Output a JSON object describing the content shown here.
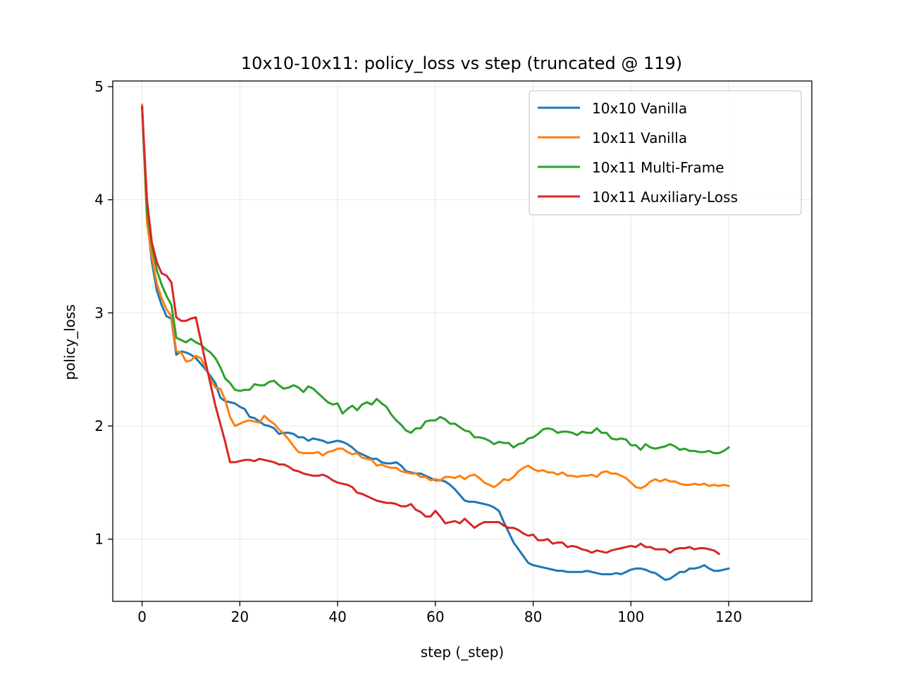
{
  "chart_data": {
    "type": "line",
    "title": "10x10-10x11: policy_loss vs step (truncated @ 119)",
    "xlabel": "step (_step)",
    "ylabel": "policy_loss",
    "xlim": [
      -6,
      137
    ],
    "ylim": [
      0.45,
      5.05
    ],
    "xticks": [
      0,
      20,
      40,
      60,
      80,
      100,
      120
    ],
    "yticks": [
      1,
      2,
      3,
      4,
      5
    ],
    "grid": true,
    "legend_position": "top-right",
    "series": [
      {
        "name": "10x10 Vanilla",
        "color": "#1f77b4",
        "values": [
          4.83,
          3.85,
          3.45,
          3.2,
          3.07,
          2.97,
          2.95,
          2.63,
          2.66,
          2.65,
          2.63,
          2.6,
          2.55,
          2.5,
          2.44,
          2.38,
          2.25,
          2.22,
          2.21,
          2.2,
          2.17,
          2.15,
          2.08,
          2.07,
          2.04,
          2.01,
          2.0,
          1.98,
          1.93,
          1.94,
          1.94,
          1.93,
          1.9,
          1.9,
          1.87,
          1.89,
          1.88,
          1.87,
          1.85,
          1.86,
          1.87,
          1.86,
          1.84,
          1.81,
          1.77,
          1.75,
          1.73,
          1.71,
          1.71,
          1.68,
          1.67,
          1.67,
          1.68,
          1.65,
          1.6,
          1.59,
          1.58,
          1.58,
          1.56,
          1.54,
          1.52,
          1.52,
          1.51,
          1.48,
          1.44,
          1.39,
          1.34,
          1.33,
          1.33,
          1.32,
          1.31,
          1.3,
          1.28,
          1.25,
          1.15,
          1.06,
          0.97,
          0.91,
          0.85,
          0.79,
          0.77,
          0.76,
          0.75,
          0.74,
          0.73,
          0.72,
          0.72,
          0.71,
          0.71,
          0.71,
          0.71,
          0.72,
          0.71,
          0.7,
          0.69,
          0.69,
          0.69,
          0.7,
          0.69,
          0.71,
          0.73,
          0.74,
          0.74,
          0.73,
          0.71,
          0.7,
          0.67,
          0.64,
          0.65,
          0.68,
          0.71,
          0.71,
          0.74,
          0.74,
          0.75,
          0.77,
          0.74,
          0.72,
          0.72,
          0.73,
          0.74
        ]
      },
      {
        "name": "10x11 Vanilla",
        "color": "#ff7f0e",
        "values": [
          4.84,
          3.8,
          3.5,
          3.26,
          3.13,
          3.03,
          2.97,
          2.66,
          2.65,
          2.57,
          2.58,
          2.62,
          2.6,
          2.52,
          2.41,
          2.34,
          2.33,
          2.23,
          2.08,
          2.0,
          2.02,
          2.04,
          2.05,
          2.04,
          2.03,
          2.09,
          2.05,
          2.02,
          1.97,
          1.93,
          1.88,
          1.82,
          1.77,
          1.76,
          1.76,
          1.76,
          1.77,
          1.74,
          1.77,
          1.78,
          1.8,
          1.8,
          1.77,
          1.75,
          1.76,
          1.72,
          1.71,
          1.7,
          1.65,
          1.66,
          1.64,
          1.63,
          1.63,
          1.6,
          1.59,
          1.58,
          1.58,
          1.55,
          1.55,
          1.52,
          1.53,
          1.52,
          1.55,
          1.55,
          1.54,
          1.56,
          1.53,
          1.56,
          1.57,
          1.54,
          1.5,
          1.48,
          1.46,
          1.49,
          1.53,
          1.52,
          1.55,
          1.6,
          1.63,
          1.65,
          1.62,
          1.6,
          1.61,
          1.59,
          1.59,
          1.57,
          1.59,
          1.56,
          1.56,
          1.55,
          1.56,
          1.56,
          1.57,
          1.55,
          1.59,
          1.6,
          1.58,
          1.58,
          1.56,
          1.54,
          1.5,
          1.46,
          1.45,
          1.47,
          1.51,
          1.53,
          1.51,
          1.53,
          1.51,
          1.51,
          1.49,
          1.48,
          1.48,
          1.49,
          1.48,
          1.49,
          1.47,
          1.48,
          1.47,
          1.48,
          1.47
        ]
      },
      {
        "name": "10x11 Multi-Frame",
        "color": "#2ca02c",
        "values": [
          4.82,
          3.9,
          3.6,
          3.38,
          3.25,
          3.15,
          3.07,
          2.78,
          2.76,
          2.74,
          2.77,
          2.74,
          2.72,
          2.68,
          2.65,
          2.6,
          2.52,
          2.42,
          2.38,
          2.32,
          2.31,
          2.32,
          2.32,
          2.37,
          2.36,
          2.36,
          2.39,
          2.4,
          2.36,
          2.33,
          2.34,
          2.36,
          2.34,
          2.3,
          2.35,
          2.33,
          2.29,
          2.25,
          2.21,
          2.19,
          2.2,
          2.11,
          2.15,
          2.18,
          2.14,
          2.19,
          2.21,
          2.19,
          2.24,
          2.2,
          2.17,
          2.1,
          2.05,
          2.01,
          1.96,
          1.94,
          1.98,
          1.98,
          2.04,
          2.05,
          2.05,
          2.08,
          2.06,
          2.02,
          2.02,
          1.99,
          1.96,
          1.95,
          1.9,
          1.9,
          1.89,
          1.87,
          1.84,
          1.86,
          1.85,
          1.85,
          1.81,
          1.84,
          1.85,
          1.89,
          1.9,
          1.93,
          1.97,
          1.98,
          1.97,
          1.94,
          1.95,
          1.95,
          1.94,
          1.92,
          1.95,
          1.94,
          1.94,
          1.98,
          1.94,
          1.94,
          1.89,
          1.88,
          1.89,
          1.88,
          1.83,
          1.83,
          1.79,
          1.84,
          1.81,
          1.8,
          1.81,
          1.82,
          1.84,
          1.82,
          1.79,
          1.8,
          1.78,
          1.78,
          1.77,
          1.77,
          1.78,
          1.76,
          1.76,
          1.78,
          1.81
        ]
      },
      {
        "name": "10x11 Auxiliary-Loss",
        "color": "#d62728",
        "values": [
          4.82,
          4.0,
          3.62,
          3.45,
          3.35,
          3.33,
          3.27,
          2.96,
          2.93,
          2.93,
          2.95,
          2.96,
          2.76,
          2.56,
          2.37,
          2.18,
          2.02,
          1.86,
          1.68,
          1.68,
          1.69,
          1.7,
          1.7,
          1.69,
          1.71,
          1.7,
          1.69,
          1.68,
          1.66,
          1.66,
          1.64,
          1.61,
          1.6,
          1.58,
          1.57,
          1.56,
          1.56,
          1.57,
          1.55,
          1.52,
          1.5,
          1.49,
          1.48,
          1.46,
          1.41,
          1.4,
          1.38,
          1.36,
          1.34,
          1.33,
          1.32,
          1.32,
          1.31,
          1.29,
          1.29,
          1.31,
          1.26,
          1.24,
          1.2,
          1.2,
          1.25,
          1.2,
          1.14,
          1.15,
          1.16,
          1.14,
          1.18,
          1.14,
          1.1,
          1.13,
          1.15,
          1.15,
          1.15,
          1.15,
          1.12,
          1.1,
          1.1,
          1.08,
          1.05,
          1.03,
          1.04,
          0.99,
          0.99,
          1.0,
          0.96,
          0.97,
          0.97,
          0.93,
          0.94,
          0.93,
          0.91,
          0.9,
          0.88,
          0.9,
          0.89,
          0.88,
          0.9,
          0.91,
          0.92,
          0.93,
          0.94,
          0.93,
          0.96,
          0.93,
          0.93,
          0.91,
          0.91,
          0.91,
          0.88,
          0.91,
          0.92,
          0.92,
          0.93,
          0.91,
          0.92,
          0.92,
          0.91,
          0.9,
          0.87
        ]
      }
    ]
  }
}
